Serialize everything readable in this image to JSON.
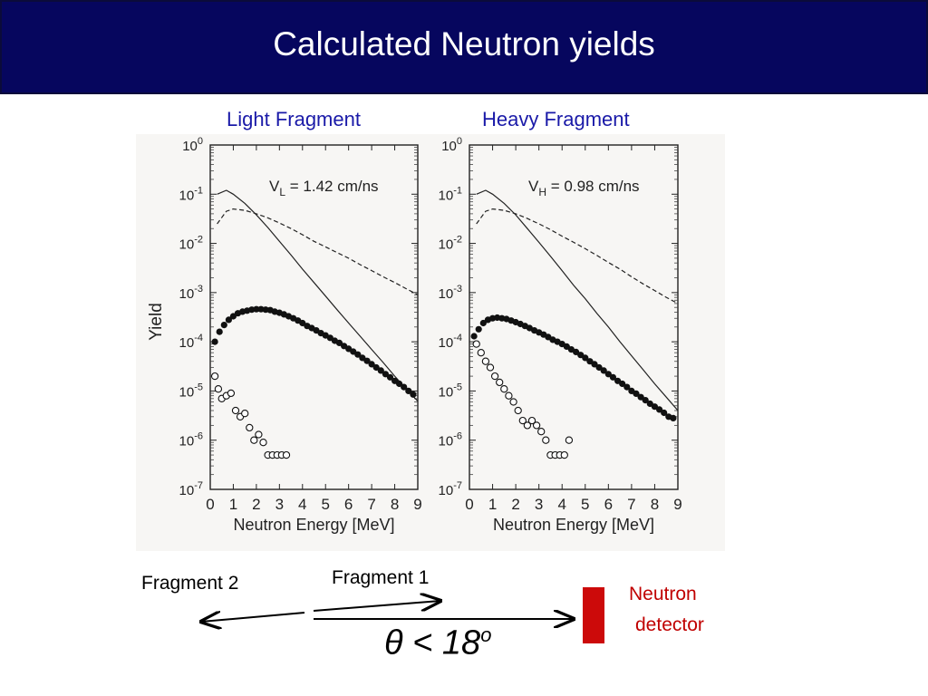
{
  "slide": {
    "title": "Calculated Neutron yields"
  },
  "panels": {
    "left_title": "Light Fragment",
    "right_title": "Heavy Fragment"
  },
  "chart_data": [
    {
      "type": "line",
      "title": "Light Fragment",
      "annotation": "VL = 1.42 cm/ns",
      "ylabel": "Yield",
      "xlabel": "Neutron Energy [MeV]",
      "yscale": "log",
      "xlim": [
        0,
        9
      ],
      "ylim": [
        1e-07,
        1
      ],
      "xticks": [
        "0",
        "1",
        "2",
        "3",
        "4",
        "5",
        "6",
        "7",
        "8",
        "9"
      ],
      "yticks": [
        "10^0",
        "10^-1",
        "10^-2",
        "10^-3",
        "10^-4",
        "10^-5",
        "10^-6",
        "10^-7"
      ],
      "series": [
        {
          "style": "solid",
          "x": [
            0.3,
            0.7,
            1.0,
            1.5,
            2,
            2.5,
            3,
            3.5,
            4,
            4.5,
            5,
            5.5,
            6,
            6.5,
            7,
            7.5,
            8,
            8.5,
            9
          ],
          "values": [
            0.1,
            0.12,
            0.1,
            0.065,
            0.038,
            0.021,
            0.011,
            0.0058,
            0.003,
            0.0016,
            0.00085,
            0.00045,
            0.00024,
            0.00013,
            7e-05,
            3.8e-05,
            2e-05,
            1.1e-05,
            6.2e-06
          ]
        },
        {
          "style": "dashed",
          "x": [
            0.3,
            0.7,
            1.0,
            1.5,
            2,
            2.5,
            3,
            3.5,
            4,
            4.5,
            5,
            5.5,
            6,
            6.5,
            7,
            7.5,
            8,
            8.5,
            9
          ],
          "values": [
            0.025,
            0.045,
            0.05,
            0.047,
            0.04,
            0.033,
            0.026,
            0.02,
            0.015,
            0.011,
            0.0085,
            0.0065,
            0.005,
            0.0037,
            0.0028,
            0.0021,
            0.0016,
            0.0012,
            0.0009
          ]
        },
        {
          "style": "filled-dots",
          "x": [
            0.2,
            0.4,
            0.6,
            0.8,
            1.0,
            1.2,
            1.4,
            1.6,
            1.8,
            2.0,
            2.2,
            2.4,
            2.6,
            2.8,
            3.0,
            3.2,
            3.4,
            3.6,
            3.8,
            4.0,
            4.2,
            4.4,
            4.6,
            4.8,
            5.0,
            5.2,
            5.4,
            5.6,
            5.8,
            6.0,
            6.2,
            6.4,
            6.6,
            6.8,
            7.0,
            7.2,
            7.4,
            7.6,
            7.8,
            8.0,
            8.2,
            8.4,
            8.6,
            8.8
          ],
          "values": [
            0.0001,
            0.00016,
            0.00022,
            0.00028,
            0.00033,
            0.00038,
            0.00041,
            0.00043,
            0.00045,
            0.00046,
            0.00046,
            0.00045,
            0.00044,
            0.00041,
            0.00039,
            0.00036,
            0.00033,
            0.0003,
            0.00027,
            0.00024,
            0.00021,
            0.00019,
            0.00017,
            0.00015,
            0.000135,
            0.00012,
            0.000105,
            9.5e-05,
            8.2e-05,
            7.2e-05,
            6.3e-05,
            5.5e-05,
            4.7e-05,
            4.1e-05,
            3.5e-05,
            3e-05,
            2.6e-05,
            2.2e-05,
            1.9e-05,
            1.6e-05,
            1.4e-05,
            1.2e-05,
            1e-05,
            8.5e-06
          ]
        },
        {
          "style": "open-circles",
          "x": [
            0.2,
            0.35,
            0.5,
            0.7,
            0.9,
            1.1,
            1.3,
            1.5,
            1.7,
            1.9,
            2.1,
            2.3,
            2.5,
            2.7,
            2.9,
            3.1,
            3.3
          ],
          "values": [
            2e-05,
            1.1e-05,
            7e-06,
            8e-06,
            9e-06,
            4e-06,
            3e-06,
            3.5e-06,
            1.8e-06,
            1e-06,
            1.3e-06,
            9e-07,
            5e-07,
            5e-07,
            5e-07,
            5e-07,
            5e-07
          ]
        }
      ]
    },
    {
      "type": "line",
      "title": "Heavy Fragment",
      "annotation": "VH = 0.98 cm/ns",
      "ylabel": "Yield",
      "xlabel": "Neutron Energy [MeV]",
      "yscale": "log",
      "xlim": [
        0,
        9
      ],
      "ylim": [
        1e-07,
        1
      ],
      "xticks": [
        "0",
        "1",
        "2",
        "3",
        "4",
        "5",
        "6",
        "7",
        "8",
        "9"
      ],
      "yticks": [
        "10^0",
        "10^-1",
        "10^-2",
        "10^-3",
        "10^-4",
        "10^-5",
        "10^-6",
        "10^-7"
      ],
      "series": [
        {
          "style": "solid",
          "x": [
            0.3,
            0.7,
            1.0,
            1.5,
            2,
            2.5,
            3,
            3.5,
            4,
            4.5,
            5,
            5.5,
            6,
            6.5,
            7,
            7.5,
            8,
            8.5,
            9
          ],
          "values": [
            0.1,
            0.12,
            0.1,
            0.065,
            0.038,
            0.02,
            0.0105,
            0.0055,
            0.0028,
            0.0014,
            0.00075,
            0.00038,
            0.0002,
            0.0001,
            5.2e-05,
            2.7e-05,
            1.4e-05,
            7.5e-06,
            4e-06
          ]
        },
        {
          "style": "dashed",
          "x": [
            0.3,
            0.7,
            1.0,
            1.5,
            2,
            2.5,
            3,
            3.5,
            4,
            4.5,
            5,
            5.5,
            6,
            6.5,
            7,
            7.5,
            8,
            8.5,
            9
          ],
          "values": [
            0.025,
            0.045,
            0.05,
            0.047,
            0.04,
            0.032,
            0.025,
            0.019,
            0.014,
            0.0105,
            0.0078,
            0.0057,
            0.0041,
            0.003,
            0.0021,
            0.0015,
            0.0011,
            0.0008,
            0.0006
          ]
        },
        {
          "style": "filled-dots",
          "x": [
            0.2,
            0.4,
            0.6,
            0.8,
            1.0,
            1.2,
            1.4,
            1.6,
            1.8,
            2.0,
            2.2,
            2.4,
            2.6,
            2.8,
            3.0,
            3.2,
            3.4,
            3.6,
            3.8,
            4.0,
            4.2,
            4.4,
            4.6,
            4.8,
            5.0,
            5.2,
            5.4,
            5.6,
            5.8,
            6.0,
            6.2,
            6.4,
            6.6,
            6.8,
            7.0,
            7.2,
            7.4,
            7.6,
            7.8,
            8.0,
            8.2,
            8.4,
            8.6,
            8.8
          ],
          "values": [
            0.00013,
            0.00018,
            0.00024,
            0.00028,
            0.0003,
            0.00031,
            0.0003,
            0.00029,
            0.00027,
            0.00025,
            0.00023,
            0.00021,
            0.00019,
            0.00017,
            0.000155,
            0.00014,
            0.000125,
            0.00011,
            0.0001,
            9e-05,
            8e-05,
            7e-05,
            6.2e-05,
            5.4e-05,
            4.7e-05,
            4e-05,
            3.5e-05,
            3e-05,
            2.6e-05,
            2.2e-05,
            1.9e-05,
            1.6e-05,
            1.4e-05,
            1.2e-05,
            1e-05,
            8.8e-06,
            7.5e-06,
            6.5e-06,
            5.5e-06,
            4.8e-06,
            4.2e-06,
            3.6e-06,
            3e-06,
            2.8e-06
          ]
        },
        {
          "style": "open-circles",
          "x": [
            0.3,
            0.5,
            0.7,
            0.9,
            1.1,
            1.3,
            1.5,
            1.7,
            1.9,
            2.1,
            2.3,
            2.5,
            2.7,
            2.9,
            3.1,
            3.3,
            3.5,
            3.7,
            3.9,
            4.1,
            4.3
          ],
          "values": [
            9e-05,
            6e-05,
            4e-05,
            3e-05,
            2e-05,
            1.5e-05,
            1.1e-05,
            8e-06,
            6e-06,
            4e-06,
            2.5e-06,
            2e-06,
            2.5e-06,
            2e-06,
            1.5e-06,
            1e-06,
            5e-07,
            5e-07,
            5e-07,
            5e-07,
            1e-06
          ]
        }
      ]
    }
  ],
  "diagram": {
    "fragment2_label": "Fragment 2",
    "fragment1_label": "Fragment 1",
    "neutron_label_line1": "Neutron",
    "neutron_label_line2": "detector",
    "angle_label": "θ < 18",
    "angle_sup": "o"
  },
  "colors": {
    "banner": "#06065e",
    "panel_title": "#1a1aa8",
    "detector": "#cc0a0a",
    "neutron_label": "#c00000"
  }
}
